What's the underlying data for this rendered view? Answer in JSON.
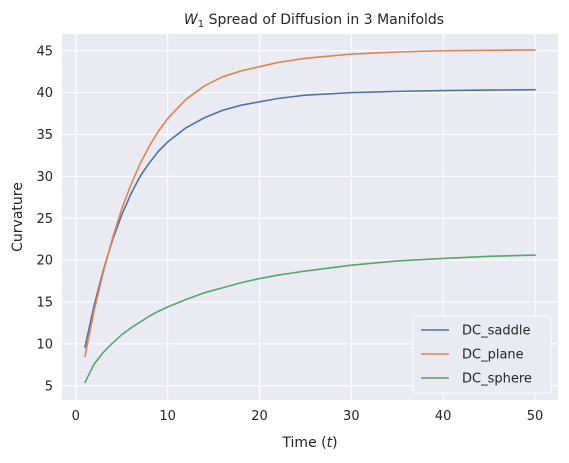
{
  "chart_data": {
    "type": "line",
    "title_prefix": "W",
    "title_sub": "1",
    "title_rest": " Spread of Diffusion in 3 Manifolds",
    "xlabel_prefix": "Time (",
    "xlabel_var": "t",
    "xlabel_suffix": ")",
    "ylabel": "Curvature",
    "xlim": [
      -1.5,
      52.5
    ],
    "ylim": [
      3.3,
      47.0
    ],
    "xticks": [
      0,
      10,
      20,
      30,
      40,
      50
    ],
    "yticks": [
      5,
      10,
      15,
      20,
      25,
      30,
      35,
      40,
      45
    ],
    "grid": true,
    "legend_position": "bottom-right",
    "x": [
      1,
      2,
      3,
      4,
      5,
      6,
      7,
      8,
      9,
      10,
      12,
      14,
      16,
      18,
      20,
      22,
      25,
      30,
      35,
      40,
      45,
      50
    ],
    "series": [
      {
        "name": "DC_saddle",
        "color": "#4c72b0",
        "values": [
          9.6,
          14.6,
          18.8,
          22.4,
          25.4,
          27.9,
          30.0,
          31.6,
          33.0,
          34.1,
          35.8,
          37.0,
          37.9,
          38.5,
          38.9,
          39.3,
          39.7,
          40.0,
          40.15,
          40.25,
          40.3,
          40.35
        ]
      },
      {
        "name": "DC_plane",
        "color": "#dd8452",
        "values": [
          8.5,
          14.0,
          18.6,
          22.6,
          26.1,
          29.0,
          31.5,
          33.6,
          35.4,
          36.9,
          39.2,
          40.8,
          41.9,
          42.6,
          43.1,
          43.6,
          44.1,
          44.6,
          44.85,
          45.0,
          45.05,
          45.1
        ]
      },
      {
        "name": "DC_sphere",
        "color": "#55a868",
        "values": [
          5.4,
          7.6,
          9.0,
          10.1,
          11.1,
          11.9,
          12.6,
          13.3,
          13.9,
          14.4,
          15.3,
          16.1,
          16.7,
          17.3,
          17.8,
          18.2,
          18.7,
          19.4,
          19.9,
          20.2,
          20.45,
          20.6
        ]
      }
    ]
  }
}
